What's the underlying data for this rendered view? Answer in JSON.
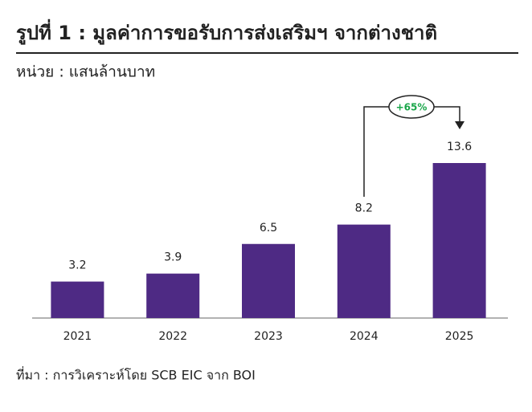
{
  "chart_data": {
    "type": "bar",
    "title": "รูปที่ 1 : มูลค่าการขอรับการส่งเสริมฯ จากต่างชาติ",
    "subtitle": "หน่วย : แสนล้านบาท",
    "source": "ที่มา : การวิเคราะห์โดย SCB EIC จาก BOI",
    "annotation": "+65%",
    "categories": [
      "2021",
      "2022",
      "2023",
      "2024",
      "2025"
    ],
    "values": [
      3.2,
      3.9,
      6.5,
      8.2,
      13.6
    ],
    "color": "#4e2a84"
  }
}
